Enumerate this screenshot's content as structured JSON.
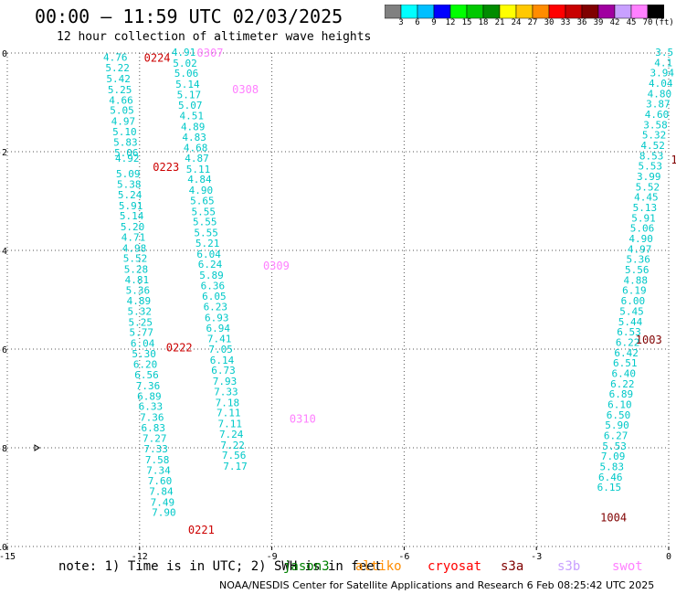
{
  "title": "00:00 – 11:59 UTC 02/03/2025",
  "subtitle": "12 hour collection of altimeter wave heights",
  "legend": {
    "colors": [
      "#808080",
      "#00ffff",
      "#00bfff",
      "#0000ff",
      "#00ff00",
      "#00c800",
      "#008c00",
      "#ffff00",
      "#ffc800",
      "#ff8c00",
      "#ff0000",
      "#c80000",
      "#800000",
      "#a000a0",
      "#c8a0ff",
      "#ff80ff",
      "#000000"
    ],
    "ticks": [
      "3",
      "6",
      "9",
      "12",
      "15",
      "18",
      "21",
      "24",
      "27",
      "30",
      "33",
      "36",
      "39",
      "42",
      "45",
      "70",
      "(ft)"
    ]
  },
  "note": "note: 1) Time is in UTC; 2) SWH is in feet",
  "missions": [
    {
      "name": "jason3",
      "color": "#008000"
    },
    {
      "name": "altiko",
      "color": "#ff8c00"
    },
    {
      "name": "cryosat",
      "color": "#ff0000"
    },
    {
      "name": "s3a",
      "color": "#800000"
    },
    {
      "name": "s3b",
      "color": "#c8a0ff"
    },
    {
      "name": "swot",
      "color": "#ff80ff"
    }
  ],
  "footer": "NOAA/NESDIS Center for Satellite Applications and Research    6 Feb 08:25:42 UTC 2025",
  "chart_data": {
    "type": "scatter",
    "xlim": [
      -15,
      0
    ],
    "ylim": [
      -10,
      0
    ],
    "xticks": [
      "-15",
      "-12",
      "-9",
      "-6",
      "-3",
      "0"
    ],
    "yticks": [
      "0",
      "-2",
      "-4",
      "-6",
      "-8",
      "-10"
    ],
    "grid": true,
    "time_labels": [
      {
        "text": "0224",
        "x": -11.9,
        "y": -0.08,
        "color": "#cc0000"
      },
      {
        "text": "0307",
        "x": -10.7,
        "y": 0.02,
        "color": "#ff80ff"
      },
      {
        "text": "0308",
        "x": -9.9,
        "y": -0.72,
        "color": "#ff80ff"
      },
      {
        "text": "0223",
        "x": -11.7,
        "y": -2.3,
        "color": "#cc0000"
      },
      {
        "text": "0309",
        "x": -9.2,
        "y": -4.3,
        "color": "#ff80ff"
      },
      {
        "text": "0222",
        "x": -11.4,
        "y": -5.95,
        "color": "#cc0000"
      },
      {
        "text": "0310",
        "x": -8.6,
        "y": -7.4,
        "color": "#ff80ff"
      },
      {
        "text": "0221",
        "x": -10.9,
        "y": -9.65,
        "color": "#cc0000"
      },
      {
        "text": "1003",
        "x": -0.75,
        "y": -5.8,
        "color": "#800000"
      },
      {
        "text": "1004",
        "x": -1.55,
        "y": -9.4,
        "color": "#800000"
      },
      {
        "text": "1",
        "x": 0.05,
        "y": -2.15,
        "color": "#800000"
      }
    ],
    "series": [
      {
        "color": "#00c8c8",
        "points": [
          {
            "x": -12.55,
            "y": -0.08,
            "v": "4.76"
          },
          {
            "x": -12.5,
            "y": -0.3,
            "v": "5.22"
          },
          {
            "x": -12.48,
            "y": -0.52,
            "v": "5.42"
          },
          {
            "x": -12.45,
            "y": -0.74,
            "v": "5.25"
          },
          {
            "x": -12.42,
            "y": -0.95,
            "v": "4.66"
          },
          {
            "x": -12.4,
            "y": -1.16,
            "v": "5.05"
          },
          {
            "x": -12.37,
            "y": -1.38,
            "v": "4.97"
          },
          {
            "x": -12.34,
            "y": -1.59,
            "v": "5.10"
          },
          {
            "x": -12.32,
            "y": -1.81,
            "v": "5.83"
          },
          {
            "x": -12.3,
            "y": -2.02,
            "v": "5.06"
          },
          {
            "x": -12.28,
            "y": -2.13,
            "v": "4.92"
          },
          {
            "x": -12.26,
            "y": -2.44,
            "v": "5.09"
          },
          {
            "x": -12.24,
            "y": -2.66,
            "v": "5.38"
          },
          {
            "x": -12.22,
            "y": -2.87,
            "v": "5.24"
          },
          {
            "x": -12.2,
            "y": -3.09,
            "v": "5.91"
          },
          {
            "x": -12.18,
            "y": -3.3,
            "v": "5.14"
          },
          {
            "x": -12.16,
            "y": -3.52,
            "v": "5.20"
          },
          {
            "x": -12.14,
            "y": -3.73,
            "v": "4.71"
          },
          {
            "x": -12.12,
            "y": -3.95,
            "v": "4.98"
          },
          {
            "x": -12.1,
            "y": -4.16,
            "v": "5.52"
          },
          {
            "x": -12.08,
            "y": -4.38,
            "v": "5.28"
          },
          {
            "x": -12.06,
            "y": -4.59,
            "v": "4.81"
          },
          {
            "x": -12.04,
            "y": -4.81,
            "v": "5.36"
          },
          {
            "x": -12.02,
            "y": -5.02,
            "v": "4.89"
          },
          {
            "x": -12.0,
            "y": -5.23,
            "v": "5.32"
          },
          {
            "x": -11.98,
            "y": -5.45,
            "v": "5.25"
          },
          {
            "x": -11.96,
            "y": -5.66,
            "v": "5.77"
          },
          {
            "x": -11.93,
            "y": -5.88,
            "v": "6.04"
          },
          {
            "x": -11.9,
            "y": -6.09,
            "v": "5.30"
          },
          {
            "x": -11.87,
            "y": -6.31,
            "v": "6.20"
          },
          {
            "x": -11.84,
            "y": -6.52,
            "v": "6.56"
          },
          {
            "x": -11.81,
            "y": -6.74,
            "v": "7.36"
          },
          {
            "x": -11.78,
            "y": -6.95,
            "v": "6.89"
          },
          {
            "x": -11.75,
            "y": -7.16,
            "v": "6.33"
          },
          {
            "x": -11.72,
            "y": -7.38,
            "v": "7.36"
          },
          {
            "x": -11.69,
            "y": -7.59,
            "v": "6.83"
          },
          {
            "x": -11.66,
            "y": -7.81,
            "v": "7.27"
          },
          {
            "x": -11.63,
            "y": -8.02,
            "v": "7.33"
          },
          {
            "x": -11.6,
            "y": -8.24,
            "v": "7.58"
          },
          {
            "x": -11.57,
            "y": -8.45,
            "v": "7.34"
          },
          {
            "x": -11.54,
            "y": -8.67,
            "v": "7.60"
          },
          {
            "x": -11.51,
            "y": -8.88,
            "v": "7.84"
          },
          {
            "x": -11.48,
            "y": -9.1,
            "v": "7.49"
          },
          {
            "x": -11.45,
            "y": -9.31,
            "v": "7.90"
          }
        ]
      },
      {
        "color": "#00c8c8",
        "points": [
          {
            "x": -11.0,
            "y": 0.02,
            "v": "4.91"
          },
          {
            "x": -10.97,
            "y": -0.2,
            "v": "5.02"
          },
          {
            "x": -10.94,
            "y": -0.41,
            "v": "5.06"
          },
          {
            "x": -10.91,
            "y": -0.63,
            "v": "5.14"
          },
          {
            "x": -10.88,
            "y": -0.84,
            "v": "5.17"
          },
          {
            "x": -10.85,
            "y": -1.06,
            "v": "5.07"
          },
          {
            "x": -10.82,
            "y": -1.27,
            "v": "4.51"
          },
          {
            "x": -10.79,
            "y": -1.49,
            "v": "4.89"
          },
          {
            "x": -10.76,
            "y": -1.7,
            "v": "4.83"
          },
          {
            "x": -10.73,
            "y": -1.92,
            "v": "4.68"
          },
          {
            "x": -10.7,
            "y": -2.13,
            "v": "4.87"
          },
          {
            "x": -10.67,
            "y": -2.35,
            "v": "5.11"
          },
          {
            "x": -10.64,
            "y": -2.56,
            "v": "4.84"
          },
          {
            "x": -10.61,
            "y": -2.78,
            "v": "4.90"
          },
          {
            "x": -10.58,
            "y": -2.99,
            "v": "5.65"
          },
          {
            "x": -10.55,
            "y": -3.21,
            "v": "5.55"
          },
          {
            "x": -10.52,
            "y": -3.42,
            "v": "5.55"
          },
          {
            "x": -10.49,
            "y": -3.64,
            "v": "5.55"
          },
          {
            "x": -10.46,
            "y": -3.85,
            "v": "5.21"
          },
          {
            "x": -10.43,
            "y": -4.07,
            "v": "6.04"
          },
          {
            "x": -10.4,
            "y": -4.28,
            "v": "6.24"
          },
          {
            "x": -10.37,
            "y": -4.5,
            "v": "5.89"
          },
          {
            "x": -10.34,
            "y": -4.71,
            "v": "6.36"
          },
          {
            "x": -10.31,
            "y": -4.93,
            "v": "6.05"
          },
          {
            "x": -10.28,
            "y": -5.14,
            "v": "6.23"
          },
          {
            "x": -10.25,
            "y": -5.36,
            "v": "6.93"
          },
          {
            "x": -10.22,
            "y": -5.57,
            "v": "6.94"
          },
          {
            "x": -10.19,
            "y": -5.79,
            "v": "7.41"
          },
          {
            "x": -10.16,
            "y": -6.0,
            "v": "7.05"
          },
          {
            "x": -10.13,
            "y": -6.22,
            "v": "6.14"
          },
          {
            "x": -10.1,
            "y": -6.43,
            "v": "6.73"
          },
          {
            "x": -10.07,
            "y": -6.65,
            "v": "7.93"
          },
          {
            "x": -10.04,
            "y": -6.86,
            "v": "7.33"
          },
          {
            "x": -10.01,
            "y": -7.08,
            "v": "7.18"
          },
          {
            "x": -9.98,
            "y": -7.29,
            "v": "7.11"
          },
          {
            "x": -9.95,
            "y": -7.51,
            "v": "7.11"
          },
          {
            "x": -9.92,
            "y": -7.72,
            "v": "7.24"
          },
          {
            "x": -9.89,
            "y": -7.94,
            "v": "7.22"
          },
          {
            "x": -9.86,
            "y": -8.15,
            "v": "7.56"
          },
          {
            "x": -9.83,
            "y": -8.37,
            "v": "7.17"
          }
        ]
      },
      {
        "color": "#00c8c8",
        "points": [
          {
            "x": -0.1,
            "y": 0.02,
            "v": "3.5"
          },
          {
            "x": -0.12,
            "y": -0.19,
            "v": "4.1"
          },
          {
            "x": -0.15,
            "y": -0.4,
            "v": "3.94"
          },
          {
            "x": -0.18,
            "y": -0.61,
            "v": "4.04"
          },
          {
            "x": -0.21,
            "y": -0.82,
            "v": "4.80"
          },
          {
            "x": -0.24,
            "y": -1.03,
            "v": "3.87"
          },
          {
            "x": -0.27,
            "y": -1.24,
            "v": "4.60"
          },
          {
            "x": -0.3,
            "y": -1.45,
            "v": "3.58"
          },
          {
            "x": -0.33,
            "y": -1.66,
            "v": "5.32"
          },
          {
            "x": -0.36,
            "y": -1.87,
            "v": "4.52"
          },
          {
            "x": -0.39,
            "y": -2.08,
            "v": "8.53"
          },
          {
            "x": -0.42,
            "y": -2.29,
            "v": "5.53"
          },
          {
            "x": -0.45,
            "y": -2.5,
            "v": "3.99"
          },
          {
            "x": -0.48,
            "y": -2.71,
            "v": "5.52"
          },
          {
            "x": -0.51,
            "y": -2.92,
            "v": "4.45"
          },
          {
            "x": -0.54,
            "y": -3.13,
            "v": "5.13"
          },
          {
            "x": -0.57,
            "y": -3.34,
            "v": "5.91"
          },
          {
            "x": -0.6,
            "y": -3.55,
            "v": "5.06"
          },
          {
            "x": -0.63,
            "y": -3.76,
            "v": "4.90"
          },
          {
            "x": -0.66,
            "y": -3.97,
            "v": "4.97"
          },
          {
            "x": -0.69,
            "y": -4.18,
            "v": "5.36"
          },
          {
            "x": -0.72,
            "y": -4.39,
            "v": "5.56"
          },
          {
            "x": -0.75,
            "y": -4.6,
            "v": "4.88"
          },
          {
            "x": -0.78,
            "y": -4.81,
            "v": "6.19"
          },
          {
            "x": -0.81,
            "y": -5.02,
            "v": "6.00"
          },
          {
            "x": -0.84,
            "y": -5.23,
            "v": "5.45"
          },
          {
            "x": -0.87,
            "y": -5.44,
            "v": "5.44"
          },
          {
            "x": -0.9,
            "y": -5.65,
            "v": "6.53"
          },
          {
            "x": -0.93,
            "y": -5.86,
            "v": "6.22"
          },
          {
            "x": -0.96,
            "y": -6.07,
            "v": "6.42"
          },
          {
            "x": -0.99,
            "y": -6.28,
            "v": "6.51"
          },
          {
            "x": -1.02,
            "y": -6.49,
            "v": "6.40"
          },
          {
            "x": -1.05,
            "y": -6.7,
            "v": "6.22"
          },
          {
            "x": -1.08,
            "y": -6.91,
            "v": "6.89"
          },
          {
            "x": -1.11,
            "y": -7.12,
            "v": "6.10"
          },
          {
            "x": -1.14,
            "y": -7.33,
            "v": "6.50"
          },
          {
            "x": -1.17,
            "y": -7.54,
            "v": "5.90"
          },
          {
            "x": -1.2,
            "y": -7.75,
            "v": "6.27"
          },
          {
            "x": -1.23,
            "y": -7.96,
            "v": "5.53"
          },
          {
            "x": -1.26,
            "y": -8.17,
            "v": "7.09"
          },
          {
            "x": -1.29,
            "y": -8.38,
            "v": "5.83"
          },
          {
            "x": -1.32,
            "y": -8.59,
            "v": "6.46"
          },
          {
            "x": -1.35,
            "y": -8.8,
            "v": "6.15"
          }
        ]
      }
    ]
  }
}
